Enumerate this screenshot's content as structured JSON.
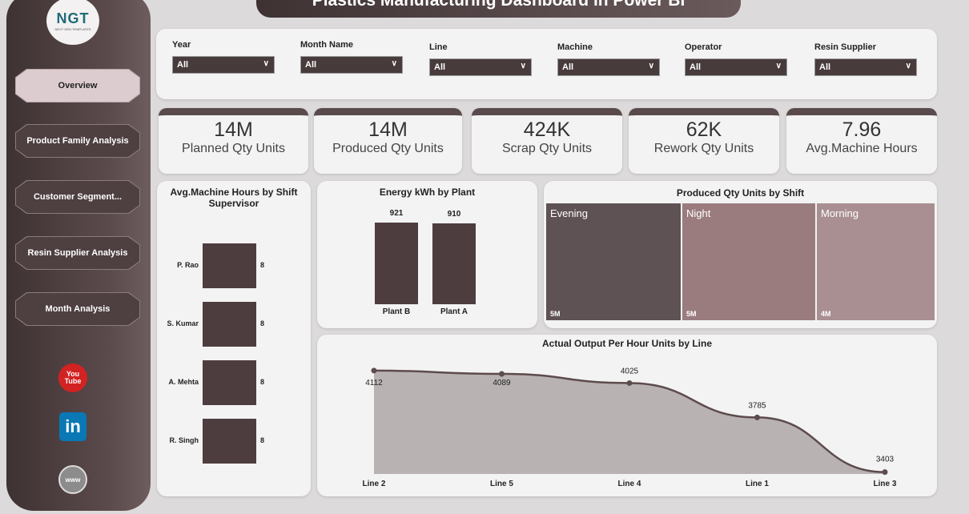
{
  "title": "Plastics Manufacturing Dashboard in Power BI",
  "logo": {
    "text": "NGT",
    "sub": "NEXT GEN TEMPLATES"
  },
  "nav": [
    "Overview",
    "Product Family Analysis",
    "Customer Segment...",
    "Resin Supplier Analysis",
    "Month Analysis"
  ],
  "social": {
    "youtube": "You Tube",
    "linkedin": "in",
    "web": "www"
  },
  "filters": [
    {
      "label": "Year",
      "value": "All"
    },
    {
      "label": "Month Name",
      "value": "All"
    },
    {
      "label": "Line",
      "value": "All"
    },
    {
      "label": "Machine",
      "value": "All"
    },
    {
      "label": "Operator",
      "value": "All"
    },
    {
      "label": "Resin Supplier",
      "value": "All"
    }
  ],
  "kpis": [
    {
      "value": "14M",
      "label": "Planned Qty Units"
    },
    {
      "value": "14M",
      "label": "Produced Qty Units"
    },
    {
      "value": "424K",
      "label": "Scrap Qty Units"
    },
    {
      "value": "62K",
      "label": "Rework Qty Units"
    },
    {
      "value": "7.96",
      "label": "Avg.Machine Hours"
    }
  ],
  "chart_data": [
    {
      "type": "bar",
      "title": "Avg.Machine Hours by Shift Supervisor",
      "categories": [
        "P. Rao",
        "S. Kumar",
        "A. Mehta",
        "R. Singh"
      ],
      "values": [
        8,
        8,
        8,
        8
      ],
      "labels": [
        "8",
        "8",
        "8",
        "8"
      ],
      "orientation": "horizontal"
    },
    {
      "type": "bar",
      "title": "Energy kWh by Plant",
      "categories": [
        "Plant B",
        "Plant A"
      ],
      "values": [
        921,
        910
      ],
      "labels": [
        "921",
        "910"
      ]
    },
    {
      "type": "treemap",
      "title": "Produced Qty Units by Shift",
      "categories": [
        "Evening",
        "Night",
        "Morning"
      ],
      "labels": [
        "5M",
        "5M",
        "4M"
      ],
      "colors": [
        "#5f5254",
        "#9a7c7e",
        "#a98f92"
      ]
    },
    {
      "type": "area",
      "title": "Actual Output Per Hour Units by Line",
      "categories": [
        "Line 2",
        "Line 5",
        "Line 4",
        "Line 1",
        "Line 3"
      ],
      "values": [
        4112,
        4089,
        4025,
        3785,
        3403
      ],
      "labels": [
        "4112",
        "4089",
        "4025",
        "3785",
        "3403"
      ],
      "ylim": [
        3390,
        4240
      ]
    }
  ]
}
